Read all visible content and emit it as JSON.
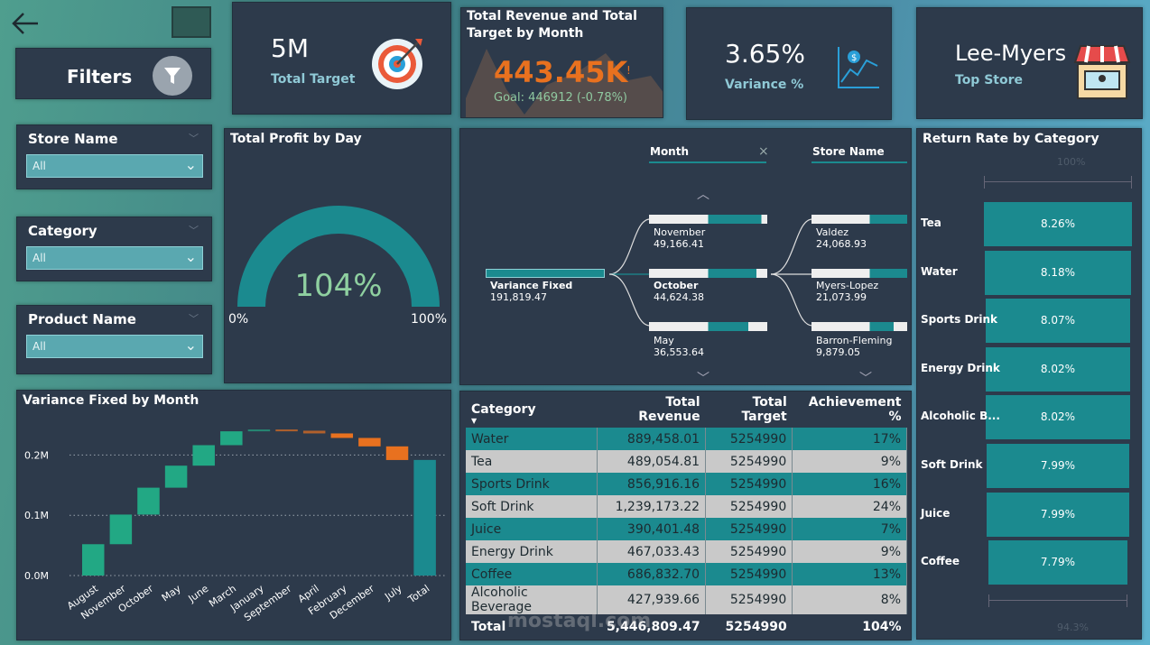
{
  "nav": {
    "back_icon": "arrow-left-icon"
  },
  "filters": {
    "label": "Filters",
    "icon": "funnel-icon"
  },
  "kpis": {
    "target": {
      "value": "5M",
      "label": "Total Target",
      "icon": "target-icon"
    },
    "revenue": {
      "title": "Total Revenue and Total Target by Month",
      "value": "443.45K",
      "alert": "!",
      "goal": "Goal: 446912 (-0.78%)"
    },
    "variance": {
      "value": "3.65%",
      "label": "Variance %",
      "icon": "money-chart-icon"
    },
    "store": {
      "value": "Lee-Myers",
      "label": "Top Store",
      "icon": "store-icon"
    }
  },
  "slicers": [
    {
      "name": "Store Name",
      "value": "All"
    },
    {
      "name": "Category",
      "value": "All"
    },
    {
      "name": "Product Name",
      "value": "All"
    }
  ],
  "gauge": {
    "title": "Total Profit by Day",
    "value": "104%",
    "min": "0%",
    "max": "100%",
    "fill": 1.0
  },
  "decomp": {
    "col1": "Month",
    "col2": "Store Name",
    "close": "×",
    "root": {
      "label": "Variance Fixed",
      "value": "191,819.47"
    },
    "months": [
      {
        "label": "November",
        "value": "49,166.41"
      },
      {
        "label": "October",
        "value": "44,624.38"
      },
      {
        "label": "May",
        "value": "36,553.64"
      }
    ],
    "stores": [
      {
        "label": "Valdez",
        "value": "24,068.93"
      },
      {
        "label": "Myers-Lopez",
        "value": "21,073.99"
      },
      {
        "label": "Barron-Fleming",
        "value": "9,879.05"
      }
    ]
  },
  "return_rate": {
    "title": "Return Rate by Category",
    "top_label": "100%",
    "bottom_label": "94.3%",
    "items": [
      {
        "label": "Tea",
        "value": 8.26,
        "text": "8.26%"
      },
      {
        "label": "Water",
        "value": 8.18,
        "text": "8.18%"
      },
      {
        "label": "Sports Drink",
        "value": 8.07,
        "text": "8.07%"
      },
      {
        "label": "Energy Drink",
        "value": 8.02,
        "text": "8.02%"
      },
      {
        "label": "Alcoholic B...",
        "value": 8.02,
        "text": "8.02%"
      },
      {
        "label": "Soft Drink",
        "value": 7.99,
        "text": "7.99%"
      },
      {
        "label": "Juice",
        "value": 7.99,
        "text": "7.99%"
      },
      {
        "label": "Coffee",
        "value": 7.79,
        "text": "7.79%"
      }
    ]
  },
  "table": {
    "headers": [
      "Category",
      "Total Revenue",
      "Total Target",
      "Achievement %"
    ],
    "rows": [
      [
        "Water",
        "889,458.01",
        "5254990",
        "17%"
      ],
      [
        "Tea",
        "489,054.81",
        "5254990",
        "9%"
      ],
      [
        "Sports Drink",
        "856,916.16",
        "5254990",
        "16%"
      ],
      [
        "Soft Drink",
        "1,239,173.22",
        "5254990",
        "24%"
      ],
      [
        "Juice",
        "390,401.48",
        "5254990",
        "7%"
      ],
      [
        "Energy Drink",
        "467,033.43",
        "5254990",
        "9%"
      ],
      [
        "Coffee",
        "686,832.70",
        "5254990",
        "13%"
      ],
      [
        "Alcoholic Beverage",
        "427,939.66",
        "5254990",
        "8%"
      ]
    ],
    "total": [
      "Total",
      "5,446,809.47",
      "5254990",
      "104%"
    ]
  },
  "chart_data": {
    "type": "waterfall",
    "title": "Variance Fixed by Month",
    "categories": [
      "August",
      "November",
      "October",
      "May",
      "June",
      "March",
      "January",
      "September",
      "April",
      "February",
      "December",
      "July",
      "Total"
    ],
    "values": [
      52000,
      49166.41,
      44624.38,
      36553.64,
      34000,
      23000,
      3000,
      -2000,
      -4500,
      -7500,
      -14000,
      -22629.43,
      191819.47
    ],
    "yticks": [
      "0.0M",
      "0.1M",
      "0.2M"
    ],
    "ylim": [
      0,
      250000
    ],
    "colors": {
      "increase": "#22a884",
      "decrease": "#e8711f",
      "total": "#1b8a8f"
    },
    "grid": true
  },
  "watermark": "mostaql.com"
}
